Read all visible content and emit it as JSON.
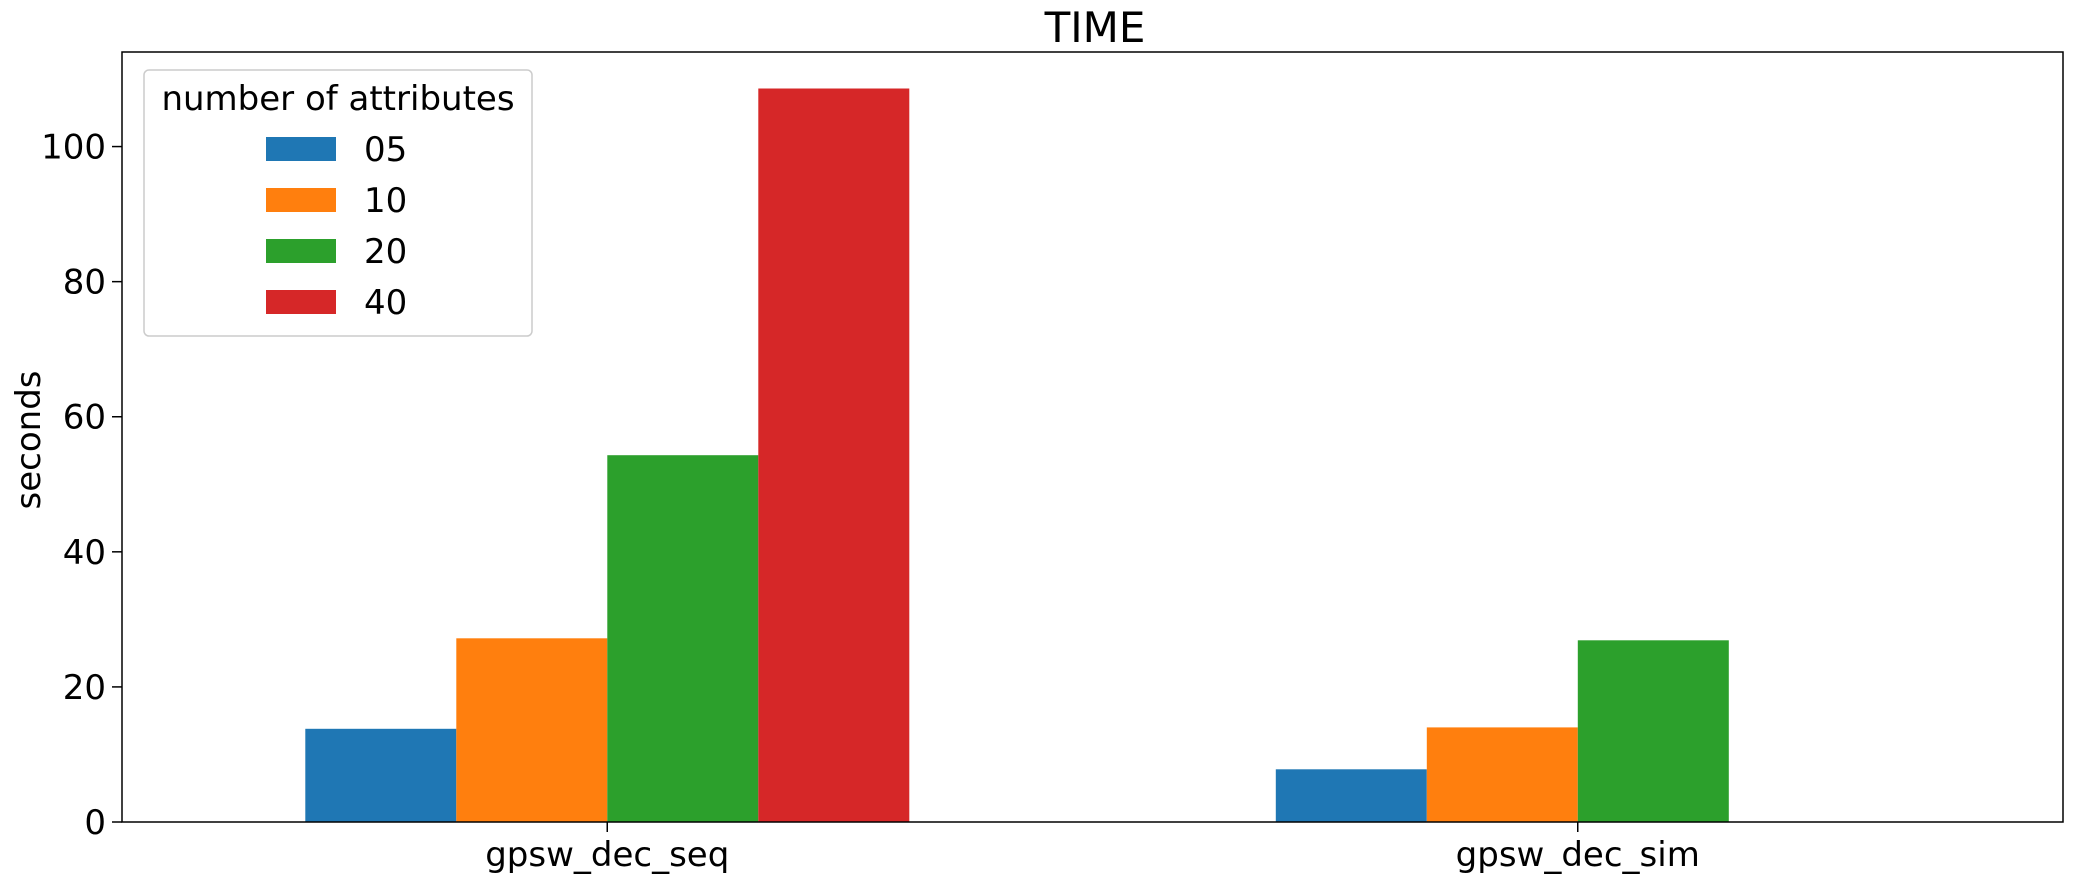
{
  "chart_data": {
    "type": "bar",
    "title": "TIME",
    "xlabel": "",
    "ylabel": "seconds",
    "categories": [
      "gpsw_dec_seq",
      "gpsw_dec_sim"
    ],
    "series": [
      {
        "name": "05",
        "values": [
          13.8,
          7.8
        ],
        "color": "#1f77b4"
      },
      {
        "name": "10",
        "values": [
          27.2,
          14.0
        ],
        "color": "#ff7f0e"
      },
      {
        "name": "20",
        "values": [
          54.3,
          26.9
        ],
        "color": "#2ca02c"
      },
      {
        "name": "40",
        "values": [
          108.6,
          0
        ],
        "color": "#d62728"
      }
    ],
    "ylim": [
      0,
      114
    ],
    "yticks": [
      0,
      20,
      40,
      60,
      80,
      100
    ],
    "grid": false,
    "legend": {
      "title": "number of attributes",
      "placement": "top-left"
    }
  }
}
